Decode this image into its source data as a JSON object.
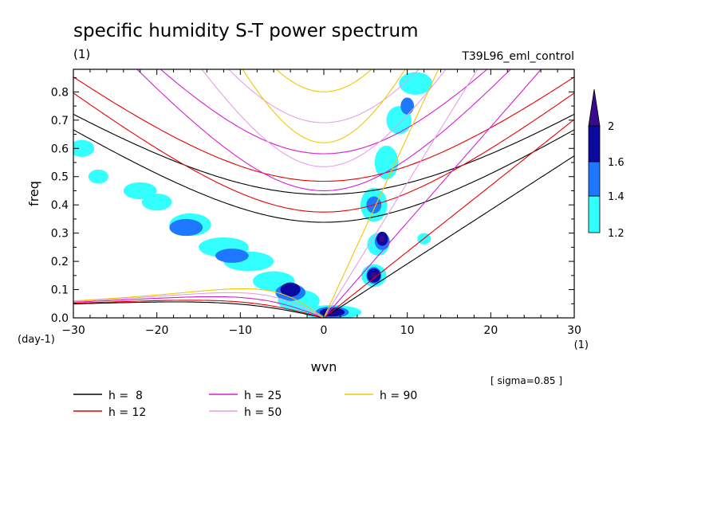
{
  "header": {
    "title": "specific humidity S-T power spectrum",
    "units": "(1)",
    "experiment": "T39L96_eml_control"
  },
  "footer": {
    "sigma_note": "[ sigma=0.85 ]"
  },
  "chart_data": {
    "type": "heatmap",
    "title": "specific humidity S-T power spectrum",
    "xlabel": "wvn",
    "ylabel": "freq",
    "x_units": "(1)",
    "y_units": "(day-1)",
    "xlim": [
      -30,
      30
    ],
    "ylim": [
      0,
      0.88
    ],
    "x_ticks": [
      -30,
      -20,
      -10,
      0,
      10,
      20,
      30
    ],
    "y_ticks": [
      0.0,
      0.1,
      0.2,
      0.3,
      0.4,
      0.5,
      0.6,
      0.7,
      0.8
    ],
    "colorbar": {
      "levels": [
        1.2,
        1.4,
        1.6,
        2
      ],
      "colors": [
        "#33ffff",
        "#1e78ff",
        "#0a0aa0",
        "#3a0a8c"
      ]
    },
    "dispersion_curves": [
      {
        "label": "h =  8",
        "h": 8,
        "color": "#000000"
      },
      {
        "label": "h = 12",
        "h": 12,
        "color": "#e60000"
      },
      {
        "label": "h = 25",
        "h": 25,
        "color": "#d21ed2"
      },
      {
        "label": "h = 50",
        "h": 50,
        "color": "#e6a0e6"
      },
      {
        "label": "h = 90",
        "h": 90,
        "color": "#f0c800"
      }
    ],
    "contour_regions": [
      {
        "level": 1.2,
        "cx": -29,
        "cy": 0.6,
        "rx": 1.5,
        "ry": 0.03
      },
      {
        "level": 1.2,
        "cx": -27,
        "cy": 0.5,
        "rx": 1.2,
        "ry": 0.025
      },
      {
        "level": 1.2,
        "cx": -22,
        "cy": 0.45,
        "rx": 2.0,
        "ry": 0.03
      },
      {
        "level": 1.2,
        "cx": -20,
        "cy": 0.41,
        "rx": 1.8,
        "ry": 0.03
      },
      {
        "level": 1.2,
        "cx": -16,
        "cy": 0.33,
        "rx": 2.5,
        "ry": 0.04
      },
      {
        "level": 1.2,
        "cx": -12,
        "cy": 0.25,
        "rx": 3.0,
        "ry": 0.035
      },
      {
        "level": 1.2,
        "cx": -9,
        "cy": 0.2,
        "rx": 3.0,
        "ry": 0.035
      },
      {
        "level": 1.2,
        "cx": -6,
        "cy": 0.13,
        "rx": 2.5,
        "ry": 0.035
      },
      {
        "level": 1.2,
        "cx": -3,
        "cy": 0.06,
        "rx": 2.5,
        "ry": 0.04
      },
      {
        "level": 1.2,
        "cx": 1,
        "cy": 0.02,
        "rx": 3.5,
        "ry": 0.025
      },
      {
        "level": 1.2,
        "cx": 6,
        "cy": 0.15,
        "rx": 1.5,
        "ry": 0.04
      },
      {
        "level": 1.2,
        "cx": 6.5,
        "cy": 0.26,
        "rx": 1.3,
        "ry": 0.04
      },
      {
        "level": 1.2,
        "cx": 6,
        "cy": 0.4,
        "rx": 1.6,
        "ry": 0.06
      },
      {
        "level": 1.2,
        "cx": 7.5,
        "cy": 0.55,
        "rx": 1.4,
        "ry": 0.06
      },
      {
        "level": 1.2,
        "cx": 9,
        "cy": 0.7,
        "rx": 1.5,
        "ry": 0.05
      },
      {
        "level": 1.2,
        "cx": 11,
        "cy": 0.83,
        "rx": 2.0,
        "ry": 0.04
      },
      {
        "level": 1.2,
        "cx": 12,
        "cy": 0.28,
        "rx": 0.8,
        "ry": 0.02
      },
      {
        "level": 1.4,
        "cx": -16.5,
        "cy": 0.32,
        "rx": 2.0,
        "ry": 0.03
      },
      {
        "level": 1.4,
        "cx": -11,
        "cy": 0.22,
        "rx": 2.0,
        "ry": 0.025
      },
      {
        "level": 1.4,
        "cx": -4,
        "cy": 0.09,
        "rx": 1.8,
        "ry": 0.03
      },
      {
        "level": 1.4,
        "cx": 1,
        "cy": 0.02,
        "rx": 2.0,
        "ry": 0.02
      },
      {
        "level": 1.4,
        "cx": 6,
        "cy": 0.15,
        "rx": 0.9,
        "ry": 0.03
      },
      {
        "level": 1.4,
        "cx": 7,
        "cy": 0.27,
        "rx": 0.9,
        "ry": 0.03
      },
      {
        "level": 1.4,
        "cx": 6,
        "cy": 0.4,
        "rx": 0.9,
        "ry": 0.03
      },
      {
        "level": 1.4,
        "cx": 10,
        "cy": 0.75,
        "rx": 0.8,
        "ry": 0.03
      },
      {
        "level": 1.6,
        "cx": -4,
        "cy": 0.1,
        "rx": 1.2,
        "ry": 0.025
      },
      {
        "level": 1.6,
        "cx": 6,
        "cy": 0.15,
        "rx": 0.8,
        "ry": 0.025
      },
      {
        "level": 1.6,
        "cx": 7,
        "cy": 0.28,
        "rx": 0.7,
        "ry": 0.025
      },
      {
        "level": 1.6,
        "cx": 1,
        "cy": 0.02,
        "rx": 1.5,
        "ry": 0.015
      },
      {
        "level": 2,
        "cx": 7,
        "cy": 0.28,
        "rx": 0.35,
        "ry": 0.012
      },
      {
        "level": 2,
        "cx": 6,
        "cy": 0.15,
        "rx": 0.35,
        "ry": 0.012
      }
    ]
  }
}
